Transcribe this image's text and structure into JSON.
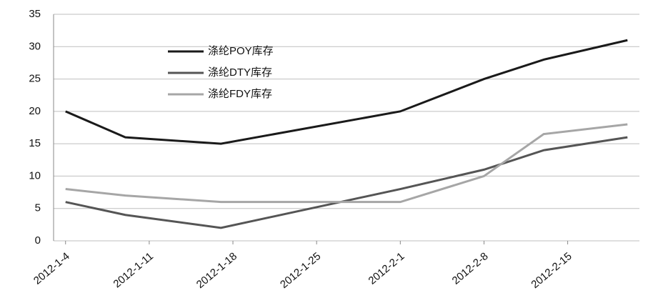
{
  "chart_data": {
    "type": "line",
    "x": [
      "2012-1-4",
      "2012-1-9",
      "2012-1-17",
      "2012-2-1",
      "2012-2-8",
      "2012-2-13",
      "2012-2-20"
    ],
    "series": [
      {
        "name": "涤纶POY库存",
        "color": "#1a1a1a",
        "values": [
          20,
          16,
          15,
          20,
          25,
          28,
          31
        ]
      },
      {
        "name": "涤纶DTY库存",
        "color": "#555555",
        "values": [
          6,
          4,
          2,
          8,
          11,
          14,
          16
        ]
      },
      {
        "name": "涤纶FDY库存",
        "color": "#a6a6a6",
        "values": [
          8,
          7,
          6,
          6,
          10,
          16.5,
          18
        ]
      }
    ],
    "xlim": [
      "2012-1-3",
      "2012-2-21"
    ],
    "xticks": [
      "2012-1-4",
      "2012-1-11",
      "2012-1-18",
      "2012-1-25",
      "2012-2-1",
      "2012-2-8",
      "2012-2-15"
    ],
    "ylim": [
      0,
      35
    ],
    "yticks": [
      0,
      5,
      10,
      15,
      20,
      25,
      30,
      35
    ],
    "grid": true
  }
}
